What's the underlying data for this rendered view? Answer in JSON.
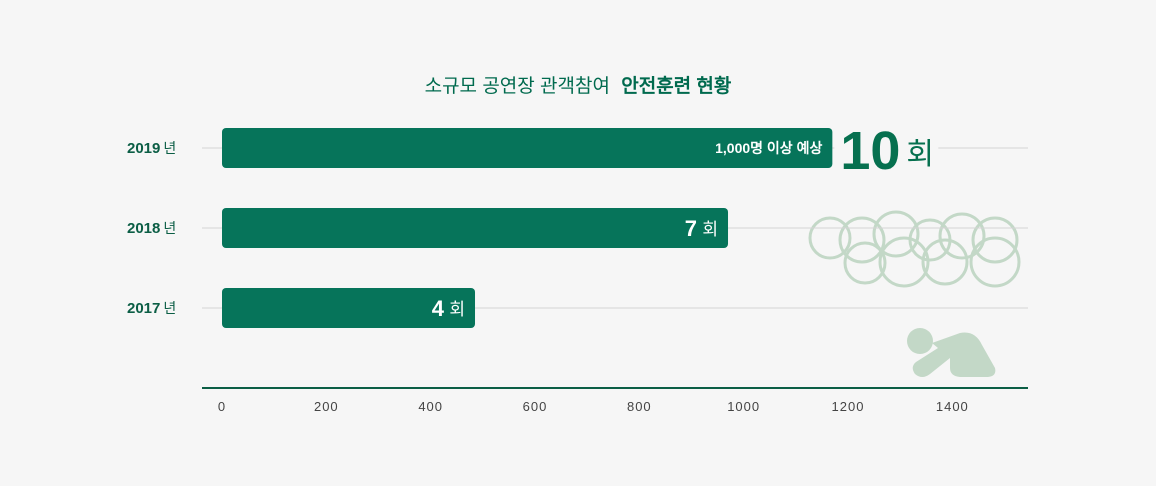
{
  "chart_data": {
    "type": "bar",
    "orientation": "horizontal",
    "title_regular": "소규모 공연장 관객참여",
    "title_bold": "안전훈련 현황",
    "categories": [
      "2019",
      "2018",
      "2017"
    ],
    "category_unit": "년",
    "values": [
      1170,
      970,
      485
    ],
    "count_values": [
      "10",
      "7",
      "4"
    ],
    "count_unit": "회",
    "note_2019": "1,000명 이상 예상",
    "xlim": [
      0,
      1500
    ],
    "xticks": [
      "0",
      "200",
      "400",
      "600",
      "800",
      "1000",
      "1200",
      "1400"
    ],
    "bar_color": "#06745a",
    "decor_color": "#c3d8c7",
    "grid": true
  }
}
